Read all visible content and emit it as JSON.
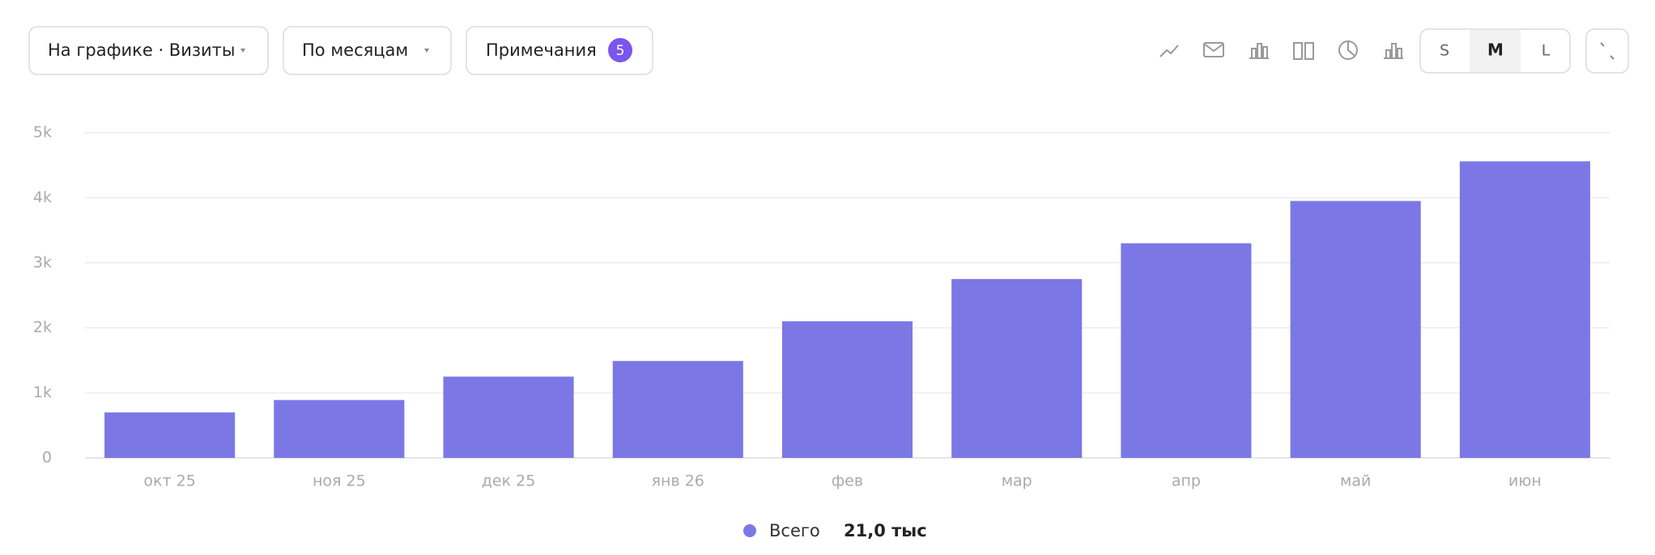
{
  "toolbar": {
    "series_select": "На графике · Визиты",
    "period_select": "По месяцам",
    "notes": "Примечания",
    "notes_count": "5",
    "sizes": [
      "S",
      "M",
      "L"
    ]
  },
  "chart_data": {
    "type": "bar",
    "categories": [
      "окт 25",
      "ноя 25",
      "дек 25",
      "янв 26",
      "фев",
      "мар",
      "апр",
      "май",
      "июн"
    ],
    "series": [
      {
        "name": "Всего",
        "color": "#7b78e6",
        "values": [
          700,
          890,
          1250,
          1490,
          2100,
          2750,
          3300,
          3950,
          4560
        ]
      }
    ],
    "legend_total": "21,0 тыс",
    "ylim": [
      0,
      5000
    ],
    "yticks": [
      0,
      {
        "value": 1000,
        "label": "1k"
      },
      {
        "value": 2000,
        "label": "2k"
      },
      {
        "value": 3000,
        "label": "3k"
      },
      {
        "value": 4000,
        "label": "4k"
      },
      {
        "value": 5000,
        "label": "5k"
      }
    ],
    "grid": true
  }
}
